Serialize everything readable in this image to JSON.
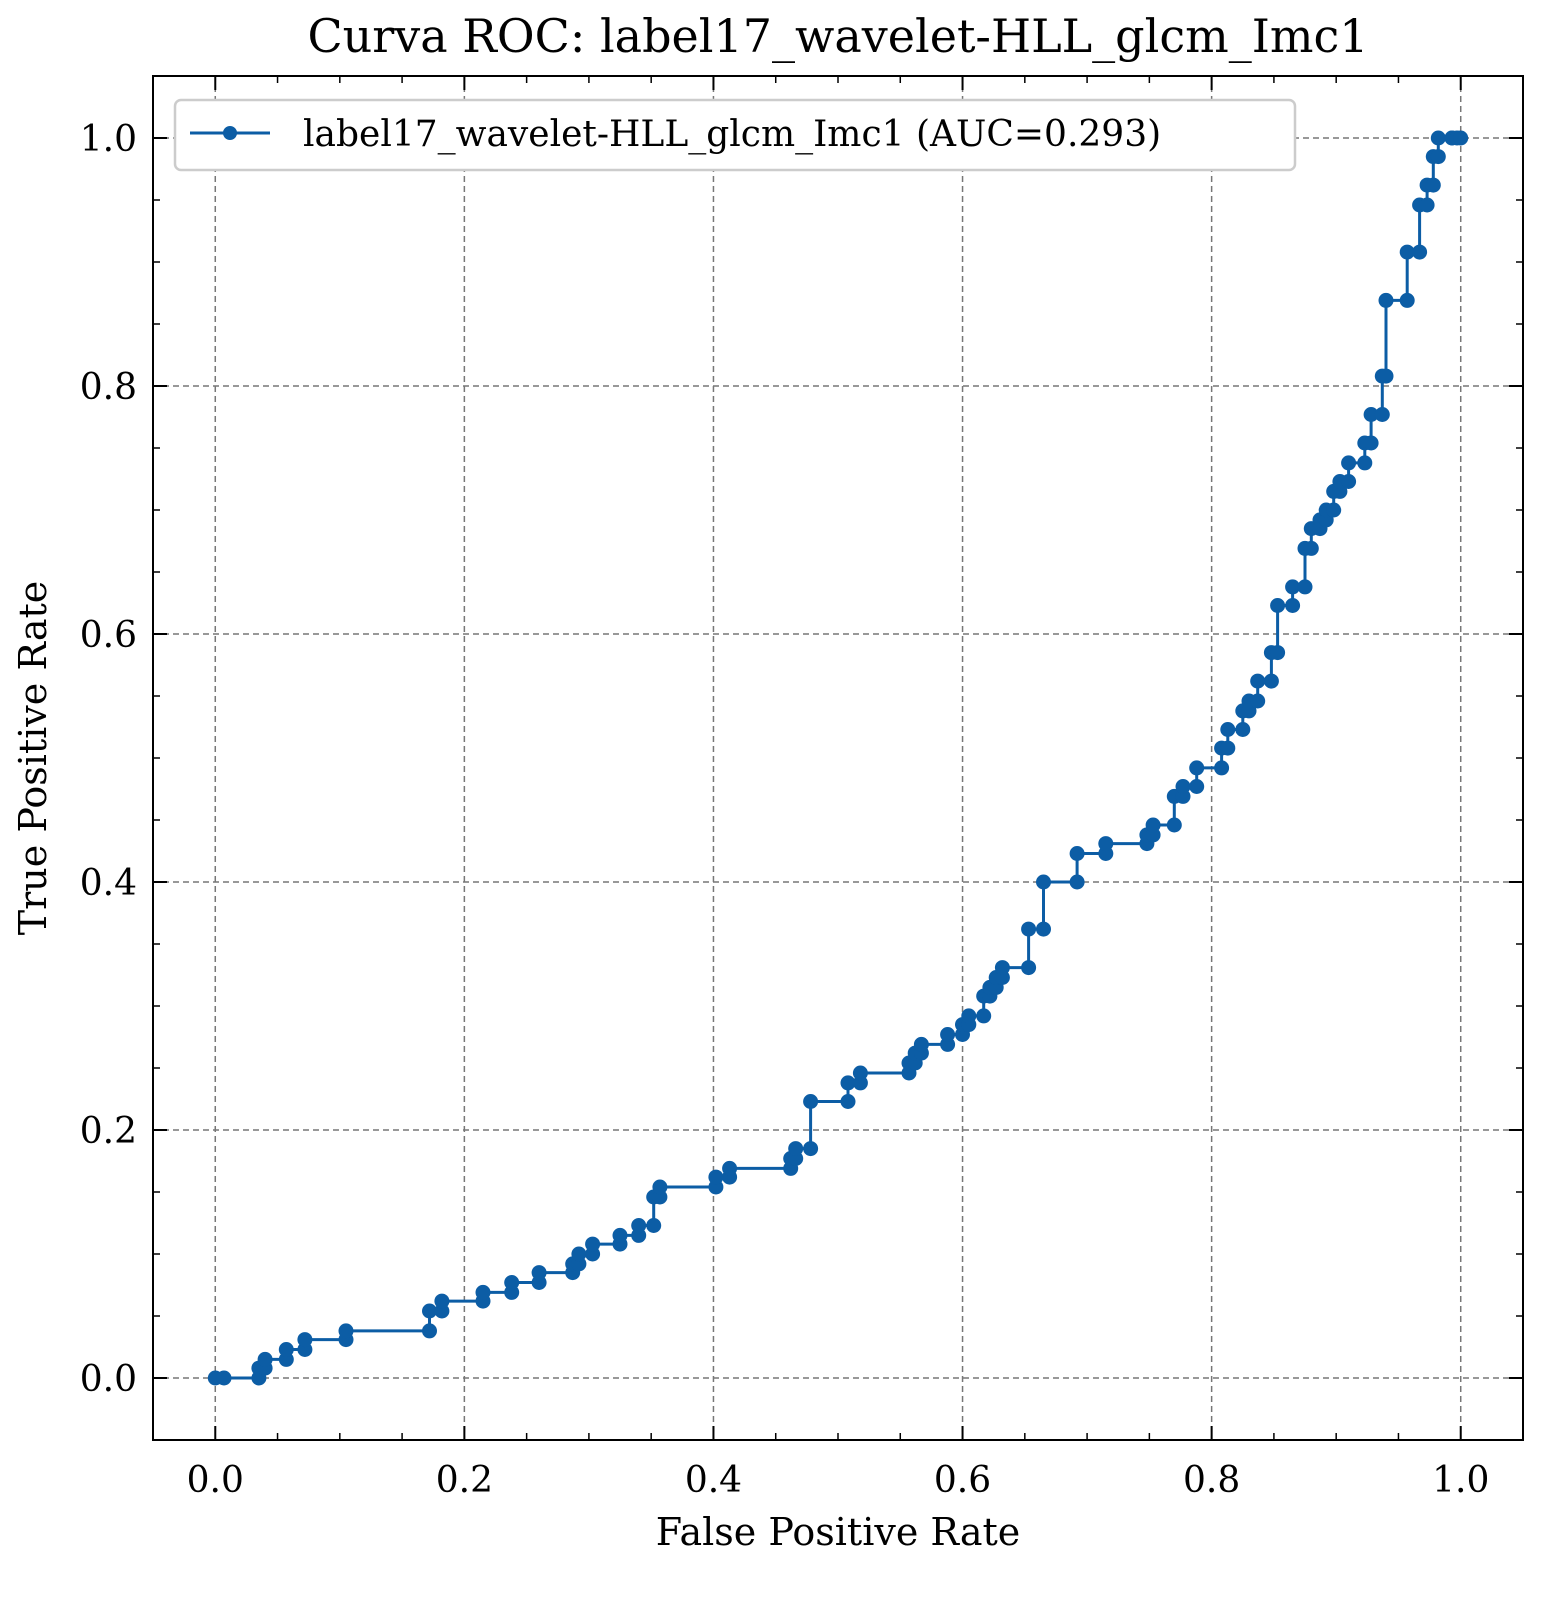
{
  "chart_data": {
    "type": "line",
    "title": "Curva ROC: label17_wavelet-HLL_glcm_Imc1",
    "xlabel": "False Positive Rate",
    "ylabel": "True Positive Rate",
    "xlim": [
      -0.05,
      1.05
    ],
    "ylim": [
      -0.05,
      1.05
    ],
    "grid": true,
    "legend_position": "upper-left",
    "x_ticks": [
      "0.0",
      "0.2",
      "0.4",
      "0.6",
      "0.8",
      "1.0"
    ],
    "y_ticks": [
      "0.0",
      "0.2",
      "0.4",
      "0.6",
      "0.8",
      "1.0"
    ],
    "series": [
      {
        "name": "label17_wavelet-HLL_glcm_Imc1 (AUC=0.293)",
        "color": "#0C5DA5",
        "marker": "circle",
        "x": [
          0.0,
          0.007,
          0.035,
          0.035,
          0.04,
          0.04,
          0.057,
          0.057,
          0.072,
          0.072,
          0.105,
          0.105,
          0.172,
          0.172,
          0.182,
          0.182,
          0.215,
          0.215,
          0.238,
          0.238,
          0.26,
          0.26,
          0.287,
          0.287,
          0.292,
          0.292,
          0.303,
          0.303,
          0.325,
          0.325,
          0.34,
          0.34,
          0.352,
          0.352,
          0.357,
          0.357,
          0.402,
          0.402,
          0.413,
          0.413,
          0.462,
          0.462,
          0.466,
          0.466,
          0.478,
          0.478,
          0.508,
          0.508,
          0.518,
          0.518,
          0.557,
          0.557,
          0.562,
          0.562,
          0.567,
          0.567,
          0.588,
          0.588,
          0.6,
          0.6,
          0.605,
          0.605,
          0.617,
          0.617,
          0.622,
          0.622,
          0.627,
          0.627,
          0.632,
          0.632,
          0.653,
          0.653,
          0.665,
          0.665,
          0.692,
          0.692,
          0.715,
          0.715,
          0.748,
          0.748,
          0.753,
          0.753,
          0.77,
          0.77,
          0.777,
          0.777,
          0.788,
          0.788,
          0.808,
          0.808,
          0.813,
          0.813,
          0.825,
          0.825,
          0.83,
          0.83,
          0.837,
          0.837,
          0.848,
          0.848,
          0.853,
          0.853,
          0.865,
          0.865,
          0.875,
          0.875,
          0.88,
          0.88,
          0.887,
          0.887,
          0.892,
          0.892,
          0.898,
          0.898,
          0.903,
          0.903,
          0.91,
          0.91,
          0.923,
          0.923,
          0.928,
          0.928,
          0.937,
          0.937,
          0.94,
          0.94,
          0.957,
          0.957,
          0.967,
          0.967,
          0.973,
          0.973,
          0.978,
          0.978,
          0.982,
          0.982,
          0.993,
          0.993,
          0.997,
          1.0
        ],
        "y": [
          0.0,
          0.0,
          0.0,
          0.008,
          0.008,
          0.015,
          0.015,
          0.023,
          0.023,
          0.031,
          0.031,
          0.038,
          0.038,
          0.054,
          0.054,
          0.062,
          0.062,
          0.069,
          0.069,
          0.077,
          0.077,
          0.085,
          0.085,
          0.092,
          0.092,
          0.1,
          0.1,
          0.108,
          0.108,
          0.115,
          0.115,
          0.123,
          0.123,
          0.146,
          0.146,
          0.154,
          0.154,
          0.162,
          0.162,
          0.169,
          0.169,
          0.177,
          0.177,
          0.185,
          0.185,
          0.223,
          0.223,
          0.238,
          0.238,
          0.246,
          0.246,
          0.254,
          0.254,
          0.262,
          0.262,
          0.269,
          0.269,
          0.277,
          0.277,
          0.285,
          0.285,
          0.292,
          0.292,
          0.308,
          0.308,
          0.315,
          0.315,
          0.323,
          0.323,
          0.331,
          0.331,
          0.362,
          0.362,
          0.4,
          0.4,
          0.423,
          0.423,
          0.431,
          0.431,
          0.438,
          0.438,
          0.446,
          0.446,
          0.469,
          0.469,
          0.477,
          0.477,
          0.492,
          0.492,
          0.508,
          0.508,
          0.523,
          0.523,
          0.538,
          0.538,
          0.546,
          0.546,
          0.562,
          0.562,
          0.585,
          0.585,
          0.623,
          0.623,
          0.638,
          0.638,
          0.669,
          0.669,
          0.685,
          0.685,
          0.692,
          0.692,
          0.7,
          0.7,
          0.715,
          0.715,
          0.723,
          0.723,
          0.738,
          0.738,
          0.754,
          0.754,
          0.777,
          0.777,
          0.808,
          0.808,
          0.869,
          0.869,
          0.908,
          0.908,
          0.946,
          0.946,
          0.962,
          0.962,
          0.985,
          0.985,
          1.0,
          1.0,
          1.0,
          1.0,
          1.0
        ]
      }
    ]
  }
}
